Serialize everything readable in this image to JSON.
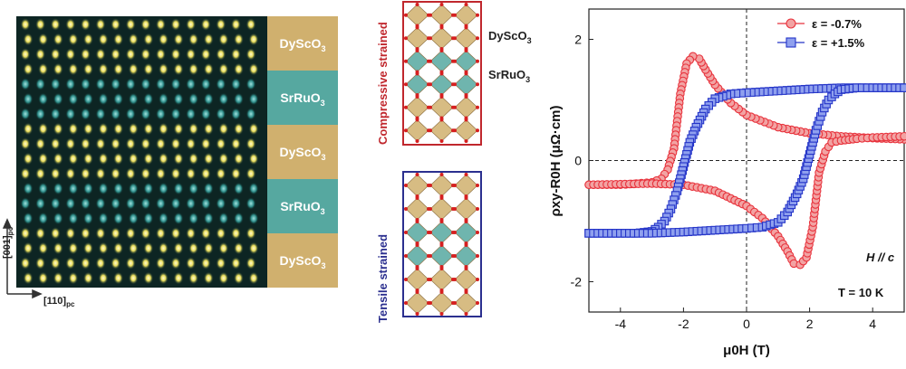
{
  "stem_panel": {
    "layers": [
      {
        "name": "DyScO",
        "sub": "3",
        "color": "#c9a55a"
      },
      {
        "name": "SrRuO",
        "sub": "3",
        "color": "#3f9c93"
      },
      {
        "name": "DyScO",
        "sub": "3",
        "color": "#c9a55a"
      },
      {
        "name": "SrRuO",
        "sub": "3",
        "color": "#3f9c93"
      },
      {
        "name": "DyScO",
        "sub": "3",
        "color": "#c9a55a"
      }
    ],
    "axis_vertical": {
      "main": "[001]",
      "sub": "pc"
    },
    "axis_horizontal": {
      "main": "[110]",
      "sub": "pc"
    }
  },
  "structure_panel": {
    "compressive": {
      "label": "Compressive strained",
      "color": "#c0272d"
    },
    "tensile": {
      "label": "Tensile strained",
      "color": "#2b2f8f"
    },
    "label_dysco": {
      "name": "DyScO",
      "sub": "3"
    },
    "label_sruo": {
      "name": "SrRuO",
      "sub": "3"
    }
  },
  "chart_data": {
    "type": "scatter",
    "title": "",
    "xlabel": "μ0H (T)",
    "ylabel": "ρxy-R0H (μΩ·cm)",
    "xlim": [
      -5,
      5
    ],
    "ylim": [
      -2.5,
      2.5
    ],
    "xticks": [
      "-4",
      "-2",
      "0",
      "2",
      "4"
    ],
    "yticks": [
      "2",
      "0",
      "-2"
    ],
    "xtick_values": [
      -4,
      -2,
      0,
      2,
      4
    ],
    "ytick_values": [
      2,
      0,
      -2
    ],
    "annotations": [
      "H // c",
      "T = 10 K"
    ],
    "series": [
      {
        "name": "ε = -0.7%",
        "marker": "circle",
        "color": "#e8323c",
        "fill": "#f2a3a3",
        "loops": [
          {
            "branch": "descending",
            "x": [
              5,
              4,
              3,
              2,
              1,
              0,
              -0.5,
              -1,
              -1.3,
              -1.5,
              -1.7,
              -1.9,
              -2.1,
              -2.3,
              -2.5,
              -2.7,
              -3,
              -3.5,
              -4,
              -5
            ],
            "y": [
              0.35,
              0.37,
              0.4,
              0.45,
              0.55,
              0.75,
              0.95,
              1.25,
              1.5,
              1.68,
              1.72,
              1.6,
              1.1,
              0.2,
              -0.15,
              -0.3,
              -0.36,
              -0.38,
              -0.4,
              -0.4
            ]
          },
          {
            "branch": "ascending",
            "x": [
              -5,
              -4,
              -3,
              -2,
              -1,
              0,
              0.5,
              1,
              1.3,
              1.5,
              1.7,
              1.9,
              2.1,
              2.3,
              2.5,
              2.7,
              3,
              3.5,
              4,
              5
            ],
            "y": [
              -0.4,
              -0.39,
              -0.38,
              -0.4,
              -0.5,
              -0.75,
              -0.95,
              -1.25,
              -1.5,
              -1.7,
              -1.72,
              -1.6,
              -1.1,
              -0.2,
              0.15,
              0.3,
              0.33,
              0.36,
              0.38,
              0.4
            ]
          }
        ]
      },
      {
        "name": "ε = +1.5%",
        "marker": "square",
        "color": "#2434c8",
        "fill": "#8fa0ee",
        "loops": [
          {
            "branch": "descending",
            "x": [
              5,
              4,
              3,
              2,
              1,
              0,
              -0.5,
              -1,
              -1.3,
              -1.6,
              -1.8,
              -2,
              -2.2,
              -2.4,
              -2.6,
              -2.8,
              -3,
              -3.5,
              -4,
              -5
            ],
            "y": [
              1.2,
              1.2,
              1.2,
              1.18,
              1.15,
              1.12,
              1.1,
              1.02,
              0.85,
              0.55,
              0.3,
              -0.1,
              -0.5,
              -0.8,
              -1.0,
              -1.1,
              -1.17,
              -1.2,
              -1.2,
              -1.2
            ]
          },
          {
            "branch": "ascending",
            "x": [
              -5,
              -4,
              -3,
              -2,
              -1,
              0,
              0.5,
              1,
              1.3,
              1.6,
              1.8,
              2,
              2.2,
              2.4,
              2.6,
              2.8,
              3,
              3.5,
              4,
              5
            ],
            "y": [
              -1.2,
              -1.2,
              -1.2,
              -1.18,
              -1.15,
              -1.12,
              -1.1,
              -1.02,
              -0.85,
              -0.55,
              -0.3,
              0.1,
              0.5,
              0.8,
              1.0,
              1.1,
              1.17,
              1.2,
              1.2,
              1.2
            ]
          }
        ]
      }
    ]
  }
}
